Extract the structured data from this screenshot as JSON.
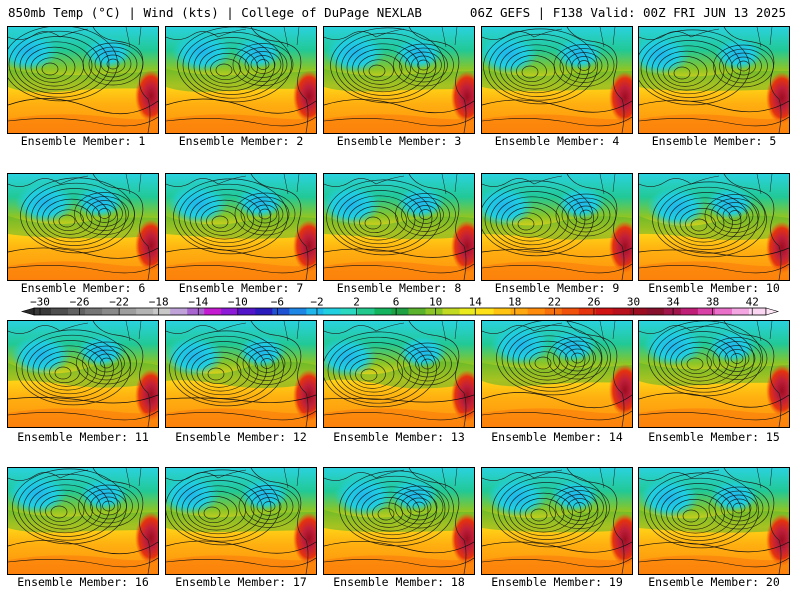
{
  "header": {
    "left": "850mb Temp (°C) | Wind (kts) | College of DuPage NEXLAB",
    "right": "06Z GEFS | F138 Valid: 00Z FRI JUN 13 2025"
  },
  "panels": [
    {
      "label": "Ensemble Member: 1"
    },
    {
      "label": "Ensemble Member: 2"
    },
    {
      "label": "Ensemble Member: 3"
    },
    {
      "label": "Ensemble Member: 4"
    },
    {
      "label": "Ensemble Member: 5"
    },
    {
      "label": "Ensemble Member: 6"
    },
    {
      "label": "Ensemble Member: 7"
    },
    {
      "label": "Ensemble Member: 8"
    },
    {
      "label": "Ensemble Member: 9"
    },
    {
      "label": "Ensemble Member: 10"
    },
    {
      "label": "Ensemble Member: 11"
    },
    {
      "label": "Ensemble Member: 12"
    },
    {
      "label": "Ensemble Member: 13"
    },
    {
      "label": "Ensemble Member: 14"
    },
    {
      "label": "Ensemble Member: 15"
    },
    {
      "label": "Ensemble Member: 16"
    },
    {
      "label": "Ensemble Member: 17"
    },
    {
      "label": "Ensemble Member: 18"
    },
    {
      "label": "Ensemble Member: 19"
    },
    {
      "label": "Ensemble Member: 20"
    }
  ],
  "colorbar": {
    "ticks": [
      "−30",
      "−26",
      "−22",
      "−18",
      "−14",
      "−10",
      "−6",
      "−2",
      "2",
      "6",
      "10",
      "14",
      "18",
      "22",
      "26",
      "30",
      "34",
      "38",
      "42"
    ],
    "colors": [
      "#3a3a3a",
      "#4e4e4e",
      "#626262",
      "#767676",
      "#8a8a8a",
      "#9e9e9e",
      "#b4b4b4",
      "#c8c8c8",
      "#bfa3d8",
      "#a865cf",
      "#c51bd0",
      "#8c1ad6",
      "#5315c9",
      "#2a1bbd",
      "#1f52d2",
      "#1e86e4",
      "#1fb6ec",
      "#20cfe0",
      "#2bd9c0",
      "#22c98d",
      "#14b35d",
      "#1ea043",
      "#5bb22c",
      "#8cc626",
      "#c2da22",
      "#eaea1c",
      "#ffe117",
      "#ffc412",
      "#ffa80f",
      "#ff8c0d",
      "#f8700c",
      "#f0520c",
      "#e5330e",
      "#d21313",
      "#b8101c",
      "#9c0d22",
      "#87102c",
      "#a0154a",
      "#c01f78",
      "#d841a5",
      "#e870c8",
      "#f4a6e2",
      "#fbd6f2"
    ]
  }
}
